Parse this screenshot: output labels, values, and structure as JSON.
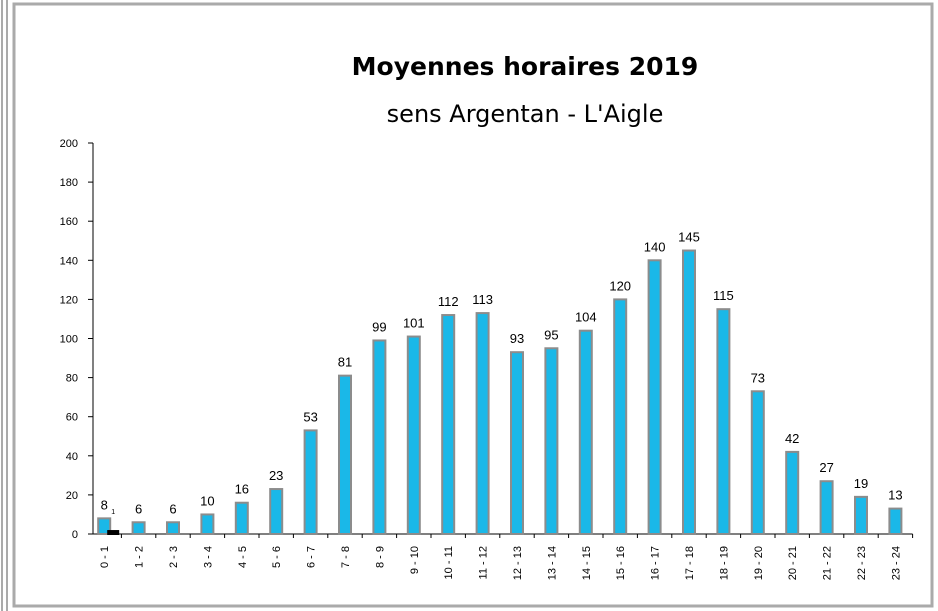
{
  "chart_data": {
    "type": "bar",
    "title": "Moyennes horaires 2019",
    "subtitle": "sens Argentan - L'Aigle",
    "categories": [
      "0 - 1",
      "1 - 2",
      "2 - 3",
      "3 - 4",
      "4 - 5",
      "5 - 6",
      "6 - 7",
      "7 - 8",
      "8 - 9",
      "9 - 10",
      "10 - 11",
      "11 - 12",
      "12 - 13",
      "13 - 14",
      "14 - 15",
      "15 - 16",
      "16 - 17",
      "17 - 18",
      "18 - 19",
      "19 - 20",
      "20 - 21",
      "21 - 22",
      "22 - 23",
      "23 - 24"
    ],
    "values": [
      8,
      6,
      6,
      10,
      16,
      23,
      53,
      81,
      99,
      101,
      112,
      113,
      93,
      95,
      104,
      120,
      140,
      145,
      115,
      73,
      42,
      27,
      19,
      13
    ],
    "color": "#1ab8e8",
    "marker": {
      "category": "0 - 1",
      "value": 1,
      "color": "#000000"
    },
    "ylim": [
      0,
      200
    ],
    "yticks": [
      0,
      20,
      40,
      60,
      80,
      100,
      120,
      140,
      160,
      180,
      200
    ],
    "grid": false
  }
}
